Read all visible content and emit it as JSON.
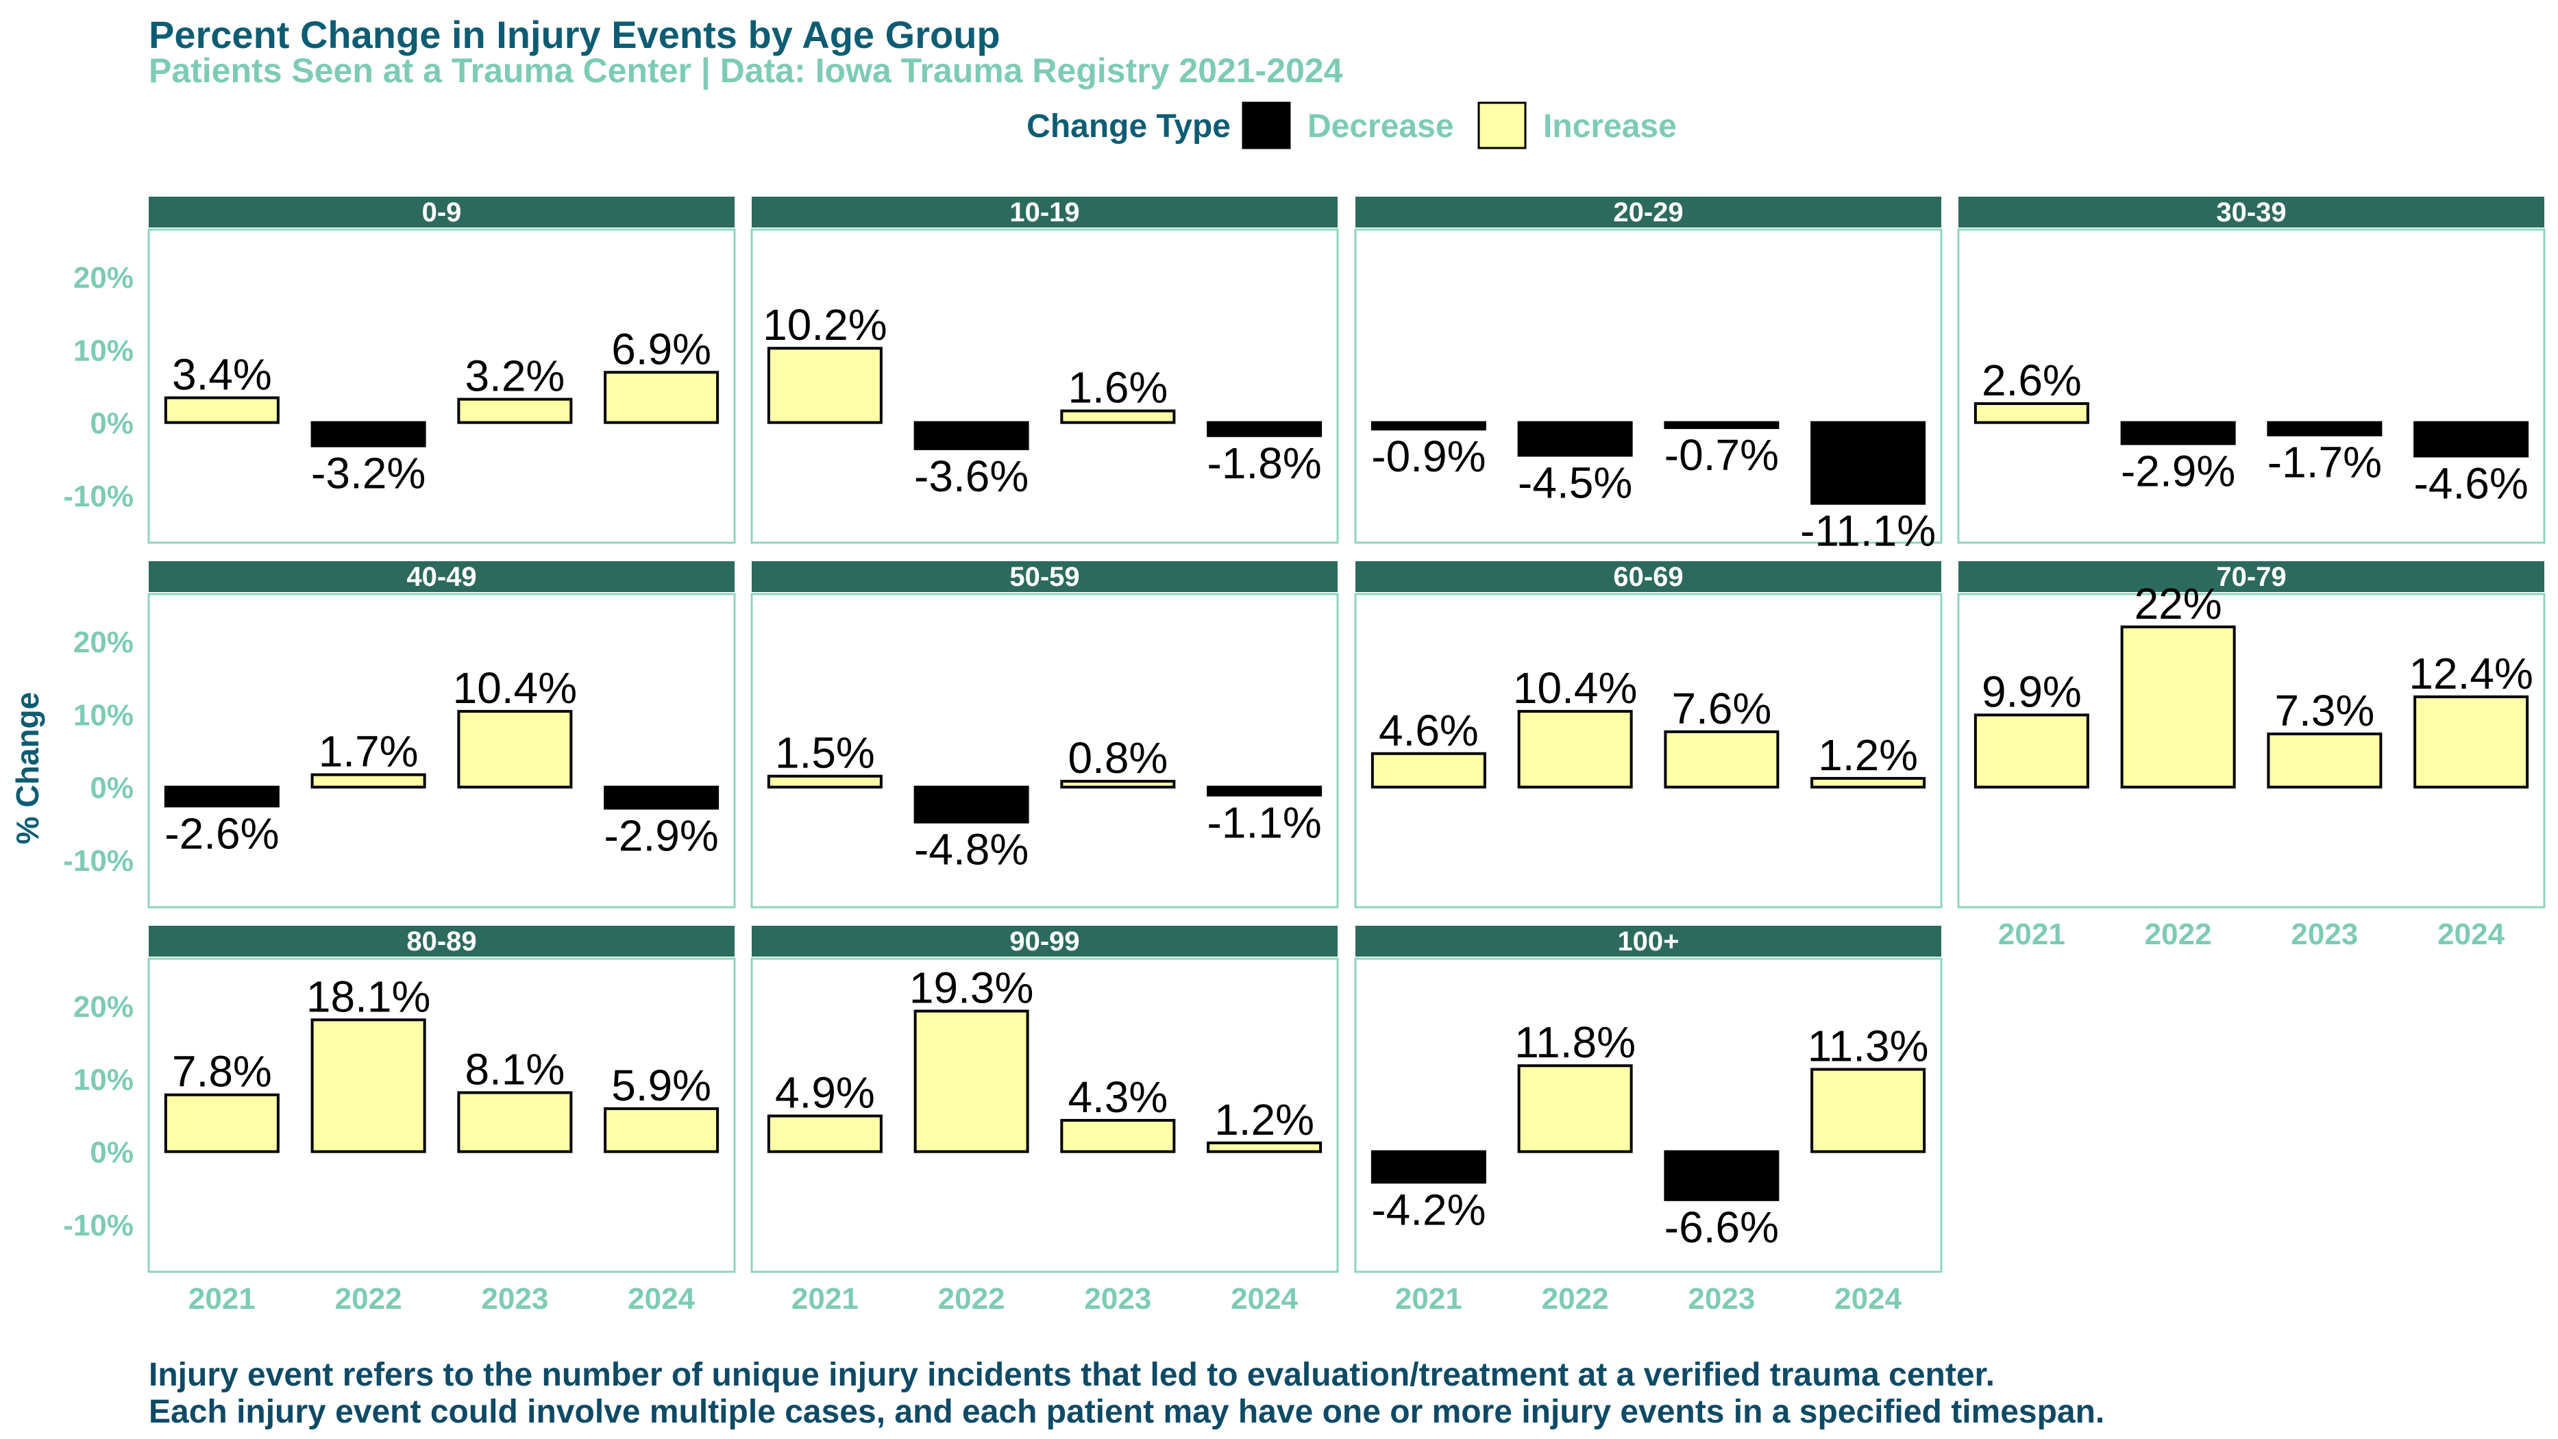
{
  "chart_data": {
    "type": "bar",
    "title": "Percent Change in Injury Events by Age Group",
    "subtitle": "Patients Seen at a Trauma Center | Data: Iowa Trauma Registry 2021-2024",
    "ylabel": "% Change",
    "xlabel": "",
    "ylim": [
      -16.5,
      26.5
    ],
    "y_ticks": [
      -10,
      0,
      10,
      20
    ],
    "y_tick_labels": [
      "-10%",
      "0%",
      "10%",
      "20%"
    ],
    "categories": [
      "2021",
      "2022",
      "2023",
      "2024"
    ],
    "legend": {
      "title": "Change Type",
      "placement": "top-center",
      "entries": [
        {
          "label": "Decrease",
          "color": "#000000"
        },
        {
          "label": "Increase",
          "color": "#FFFFA8"
        }
      ]
    },
    "panels": [
      {
        "label": "0-9",
        "values": [
          3.4,
          -3.2,
          3.2,
          6.9
        ],
        "labels": [
          "3.4%",
          "-3.2%",
          "3.2%",
          "6.9%"
        ]
      },
      {
        "label": "10-19",
        "values": [
          10.2,
          -3.6,
          1.6,
          -1.8
        ],
        "labels": [
          "10.2%",
          "-3.6%",
          "1.6%",
          "-1.8%"
        ]
      },
      {
        "label": "20-29",
        "values": [
          -0.9,
          -4.5,
          -0.7,
          -11.1
        ],
        "labels": [
          "-0.9%",
          "-4.5%",
          "-0.7%",
          "-11.1%"
        ]
      },
      {
        "label": "30-39",
        "values": [
          2.6,
          -2.9,
          -1.7,
          -4.6
        ],
        "labels": [
          "2.6%",
          "-2.9%",
          "-1.7%",
          "-4.6%"
        ]
      },
      {
        "label": "40-49",
        "values": [
          -2.6,
          1.7,
          10.4,
          -2.9
        ],
        "labels": [
          "-2.6%",
          "1.7%",
          "10.4%",
          "-2.9%"
        ]
      },
      {
        "label": "50-59",
        "values": [
          1.5,
          -4.8,
          0.8,
          -1.1
        ],
        "labels": [
          "1.5%",
          "-4.8%",
          "0.8%",
          "-1.1%"
        ]
      },
      {
        "label": "60-69",
        "values": [
          4.6,
          10.4,
          7.6,
          1.2
        ],
        "labels": [
          "4.6%",
          "10.4%",
          "7.6%",
          "1.2%"
        ]
      },
      {
        "label": "70-79",
        "values": [
          9.9,
          22,
          7.3,
          12.4
        ],
        "labels": [
          "9.9%",
          "22%",
          "7.3%",
          "12.4%"
        ]
      },
      {
        "label": "80-89",
        "values": [
          7.8,
          18.1,
          8.1,
          5.9
        ],
        "labels": [
          "7.8%",
          "18.1%",
          "8.1%",
          "5.9%"
        ]
      },
      {
        "label": "90-99",
        "values": [
          4.9,
          19.3,
          4.3,
          1.2
        ],
        "labels": [
          "4.9%",
          "19.3%",
          "4.3%",
          "1.2%"
        ]
      },
      {
        "label": "100+",
        "values": [
          -4.2,
          11.8,
          -6.6,
          11.3
        ],
        "labels": [
          "-4.2%",
          "11.8%",
          "-6.6%",
          "11.3%"
        ]
      }
    ],
    "grid": false,
    "colors": {
      "title": "#0E5C73",
      "subtitle": "#7ECBB5",
      "axis_text": "#7ECBB5",
      "strip_fill": "#2C6A5E",
      "strip_text": "#FFFFFF",
      "panel_border": "#8FD4C0",
      "caption": "#0E4A66"
    }
  },
  "caption": [
    "Injury event refers to the number of unique injury incidents that led to evaluation/treatment at a verified trauma center.",
    "Each injury event could involve multiple cases, and each patient may have one or more injury events in a specified timespan."
  ]
}
